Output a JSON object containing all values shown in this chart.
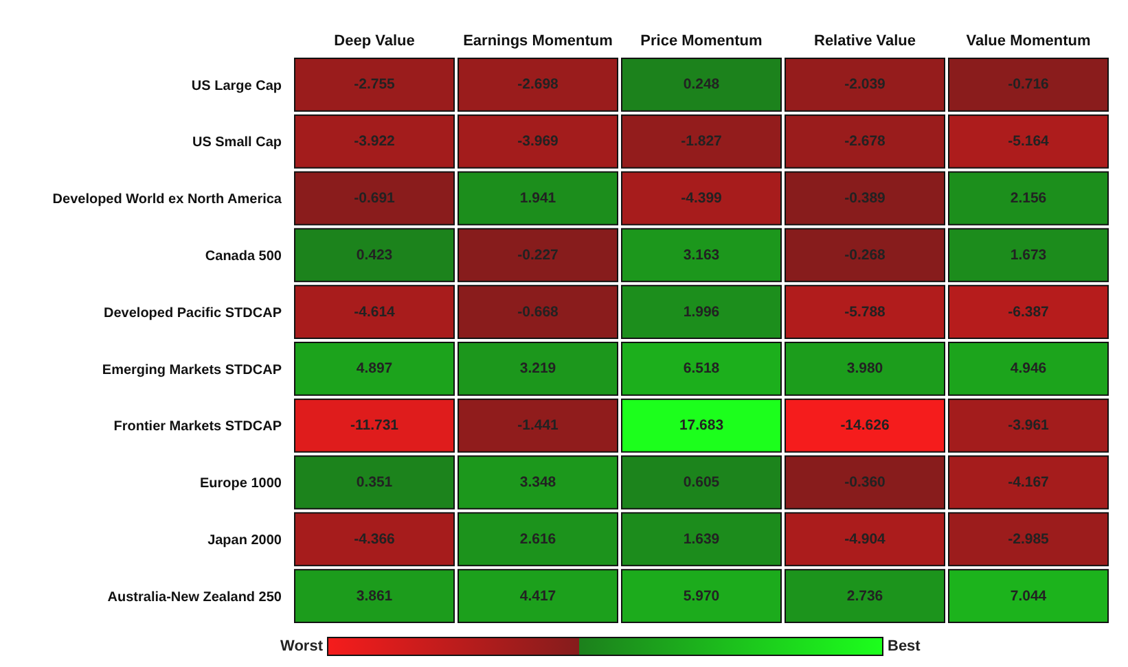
{
  "chart_data": {
    "type": "heatmap",
    "categories": [
      "Deep Value",
      "Earnings Momentum",
      "Price Momentum",
      "Relative Value",
      "Value Momentum"
    ],
    "y_categories": [
      "US Large Cap",
      "US Small Cap",
      "Developed World ex North America",
      "Canada 500",
      "Developed Pacific STDCAP",
      "Emerging Markets STDCAP",
      "Frontier Markets STDCAP",
      "Europe 1000",
      "Japan 2000",
      "Australia-New Zealand 250"
    ],
    "cells": [
      [
        -2.755,
        -2.698,
        0.248,
        -2.039,
        -0.716
      ],
      [
        -3.922,
        -3.969,
        -1.827,
        -2.678,
        -5.164
      ],
      [
        -0.691,
        1.941,
        -4.399,
        -0.389,
        2.156
      ],
      [
        0.423,
        -0.227,
        3.163,
        -0.268,
        1.673
      ],
      [
        -4.614,
        -0.668,
        1.996,
        -5.788,
        -6.387
      ],
      [
        4.897,
        3.219,
        6.518,
        3.98,
        4.946
      ],
      [
        -11.731,
        -1.441,
        17.683,
        -14.626,
        -3.961
      ],
      [
        0.351,
        3.348,
        0.605,
        -0.36,
        -4.167
      ],
      [
        -4.366,
        2.616,
        1.639,
        -4.904,
        -2.985
      ],
      [
        3.861,
        4.417,
        5.97,
        2.736,
        7.044
      ]
    ],
    "cell_labels": [
      [
        "-2.755",
        "-2.698",
        "0.248",
        "-2.039",
        "-0.716"
      ],
      [
        "-3.922",
        "-3.969",
        "-1.827",
        "-2.678",
        "-5.164"
      ],
      [
        "-0.691",
        "1.941",
        "-4.399",
        "-0.389",
        "2.156"
      ],
      [
        "0.423",
        "-0.227",
        "3.163",
        "-0.268",
        "1.673"
      ],
      [
        "-4.614",
        "-0.668",
        "1.996",
        "-5.788",
        "-6.387"
      ],
      [
        "4.897",
        "3.219",
        "6.518",
        "3.980",
        "4.946"
      ],
      [
        "-11.731",
        "-1.441",
        "17.683",
        "-14.626",
        "-3.961"
      ],
      [
        "0.351",
        "3.348",
        "0.605",
        "-0.360",
        "-4.167"
      ],
      [
        "-4.366",
        "2.616",
        "1.639",
        "-4.904",
        "-2.985"
      ],
      [
        "3.861",
        "4.417",
        "5.970",
        "2.736",
        "7.044"
      ]
    ],
    "annotations": [
      "Worst",
      "Best"
    ],
    "data_labels": true
  }
}
